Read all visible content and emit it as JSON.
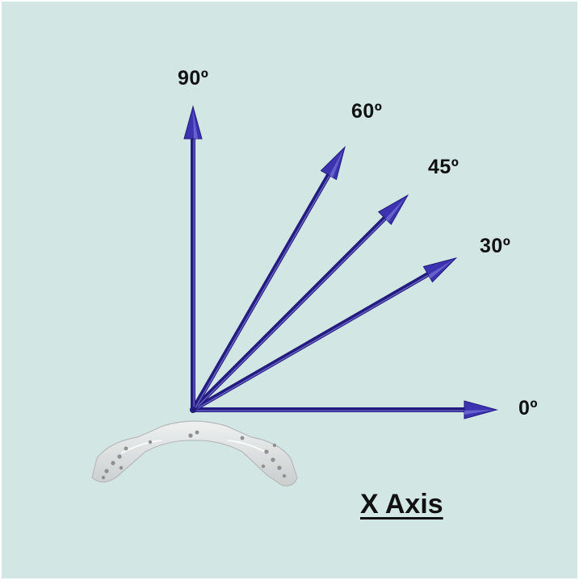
{
  "colors": {
    "background": "#d2e6e3",
    "arrow": "#3b33b0",
    "arrow_dark": "#231c80",
    "arrow_light": "#8c86e6",
    "text": "#111111"
  },
  "arrows": [
    {
      "label": "0º",
      "angle_deg": 0
    },
    {
      "label": "30º",
      "angle_deg": 30
    },
    {
      "label": "45º",
      "angle_deg": 45
    },
    {
      "label": "60º",
      "angle_deg": 60
    },
    {
      "label": "90º",
      "angle_deg": 90
    }
  ],
  "caption": "X Axis",
  "bracket_icon": "translucent-mounting-bracket"
}
